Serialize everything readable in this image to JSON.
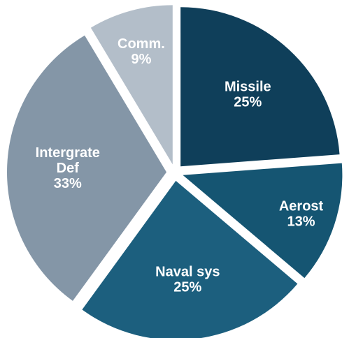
{
  "chart_data": {
    "type": "pie",
    "title": "",
    "legend": "none",
    "slices": [
      {
        "name": "Missile",
        "label_lines": [
          "Missile",
          "25%"
        ],
        "value": 25,
        "color": "#0f3f5a"
      },
      {
        "name": "Aerost",
        "label_lines": [
          "Aerost",
          "13%"
        ],
        "value": 13,
        "color": "#155572"
      },
      {
        "name": "Naval sys",
        "label_lines": [
          "Naval sys",
          "25%"
        ],
        "value": 25,
        "color": "#1c5f7e"
      },
      {
        "name": "Intergrate Def",
        "label_lines": [
          "Intergrate",
          "Def",
          "33%"
        ],
        "value": 33,
        "color": "#8496a7"
      },
      {
        "name": "Comm.",
        "label_lines": [
          "Comm.",
          "9%"
        ],
        "value": 9,
        "color": "#b3bec9"
      }
    ]
  }
}
